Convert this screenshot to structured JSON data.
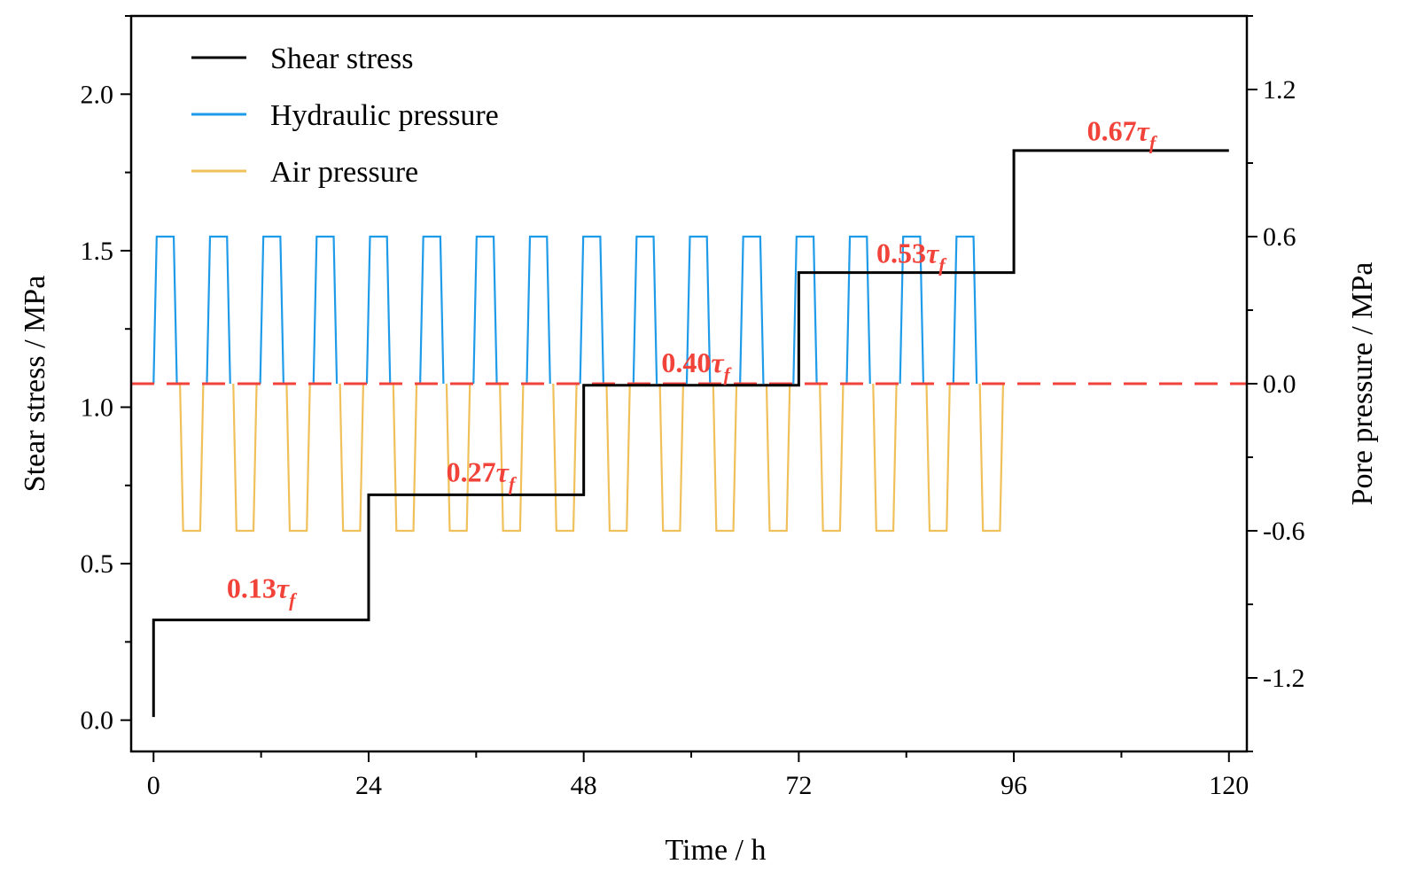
{
  "chart_data": {
    "type": "line",
    "x": {
      "label": "Time / h",
      "range": [
        -2.5,
        122
      ],
      "ticks": [
        0,
        24,
        48,
        72,
        96,
        120
      ],
      "minor_step": 12
    },
    "y_left": {
      "label": "Stear stress / MPa",
      "range": [
        -0.1,
        2.25
      ],
      "ticks": [
        0.0,
        0.5,
        1.0,
        1.5,
        2.0
      ],
      "tick_labels": [
        "0.0",
        "0.5",
        "1.0",
        "1.5",
        "2.0"
      ],
      "minor_step": 0.25
    },
    "y_right": {
      "label": "Pore pressure / MPa",
      "range": [
        -1.5,
        1.5
      ],
      "ticks": [
        -1.2,
        -0.6,
        0.0,
        0.6,
        1.2
      ],
      "tick_labels": [
        "-1.2",
        "-0.6",
        "0.0",
        "0.6",
        "1.2"
      ],
      "minor_step": 0.3
    },
    "series": [
      {
        "name": "Shear stress",
        "axis": "left",
        "color": "#000000",
        "step_points": [
          [
            0,
            0.01
          ],
          [
            0,
            0.32
          ],
          [
            24,
            0.32
          ],
          [
            24,
            0.72
          ],
          [
            48,
            0.72
          ],
          [
            48,
            1.07
          ],
          [
            72,
            1.07
          ],
          [
            72,
            1.43
          ],
          [
            96,
            1.43
          ],
          [
            96,
            1.82
          ],
          [
            120,
            1.82
          ]
        ]
      },
      {
        "name": "Hydraulic pressure",
        "axis": "right",
        "color": "#1e9be9",
        "pulse": {
          "start": 0,
          "period": 5.95,
          "count": 16,
          "high": 0.6,
          "rise": 0.35,
          "hold": 1.9,
          "fall": 0.35
        }
      },
      {
        "name": "Air pressure",
        "axis": "right",
        "color": "#f0c05a",
        "pulse": {
          "start": 2.95,
          "period": 5.95,
          "count": 16,
          "low": -0.6,
          "fall": 0.35,
          "hold": 1.9,
          "rise": 0.35
        }
      }
    ],
    "reference_line": {
      "axis": "right",
      "y": 0.0,
      "color": "#f2433a",
      "style": "dashed"
    },
    "annotations": [
      {
        "num": "0.13",
        "tau": "τ",
        "sub": "f",
        "x": 12,
        "y": 0.42,
        "color": "#f2433a"
      },
      {
        "num": "0.27",
        "tau": "τ",
        "sub": "f",
        "x": 36.5,
        "y": 0.79,
        "color": "#f2433a"
      },
      {
        "num": "0.40",
        "tau": "τ",
        "sub": "f",
        "x": 60.5,
        "y": 1.14,
        "color": "#f2433a"
      },
      {
        "num": "0.53",
        "tau": "τ",
        "sub": "f",
        "x": 84.5,
        "y": 1.49,
        "color": "#f2433a"
      },
      {
        "num": "0.67",
        "tau": "τ",
        "sub": "f",
        "x": 108,
        "y": 1.88,
        "color": "#f2433a"
      }
    ],
    "legend": {
      "position": "top-left",
      "entries": [
        {
          "label": "Shear stress",
          "color": "#000000"
        },
        {
          "label": "Hydraulic pressure",
          "color": "#1e9be9"
        },
        {
          "label": "Air pressure",
          "color": "#f0c05a"
        }
      ]
    }
  }
}
